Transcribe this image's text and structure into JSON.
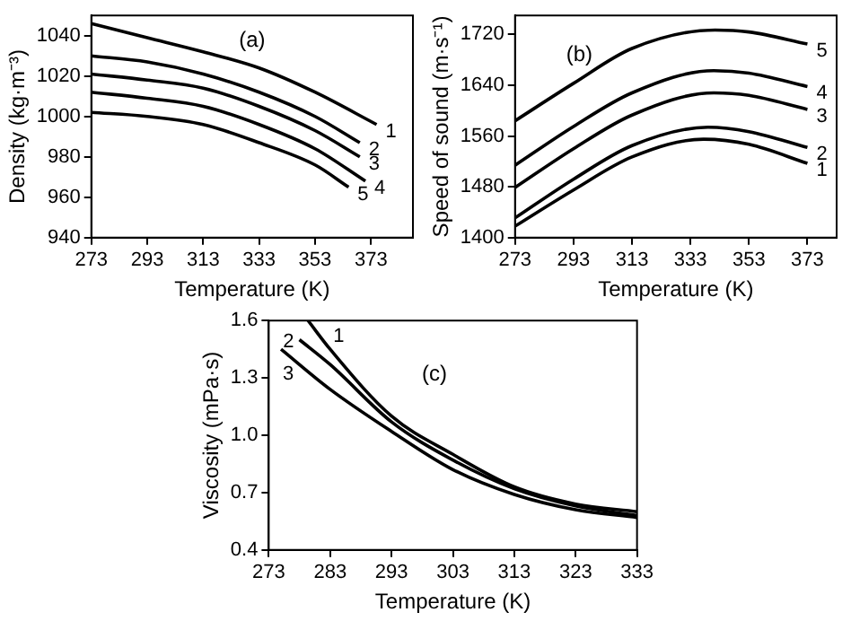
{
  "chart_data": [
    {
      "type": "line",
      "title": "(a)",
      "xlabel": "Temperature (K)",
      "ylabel": "Density (kg·m⁻³)",
      "xlim": [
        273,
        388
      ],
      "xticks": [
        273,
        293,
        313,
        333,
        353,
        373
      ],
      "ylim": [
        940,
        1050
      ],
      "yticks": [
        940,
        960,
        980,
        1000,
        1020,
        1040
      ],
      "grid": false,
      "legend": false,
      "marker": "none",
      "line_style": "solid",
      "series": [
        {
          "name": "1",
          "color": "#000000",
          "x": [
            273,
            293,
            313,
            333,
            353,
            375
          ],
          "values": [
            1046,
            1039,
            1032,
            1024,
            1012,
            996
          ]
        },
        {
          "name": "2",
          "color": "#000000",
          "x": [
            273,
            293,
            313,
            333,
            353,
            369
          ],
          "values": [
            1030,
            1027,
            1021,
            1012,
            1000,
            987
          ]
        },
        {
          "name": "3",
          "color": "#000000",
          "x": [
            273,
            293,
            313,
            333,
            353,
            369
          ],
          "values": [
            1021,
            1018,
            1014,
            1005,
            993,
            980
          ]
        },
        {
          "name": "4",
          "color": "#000000",
          "x": [
            273,
            293,
            313,
            333,
            353,
            371
          ],
          "values": [
            1012,
            1009,
            1005,
            996,
            984,
            968
          ]
        },
        {
          "name": "5",
          "color": "#000000",
          "x": [
            273,
            293,
            313,
            333,
            353,
            365
          ],
          "values": [
            1002,
            1000,
            996,
            987,
            976,
            965
          ]
        }
      ]
    },
    {
      "type": "line",
      "title": "(b)",
      "xlabel": "Temperature (K)",
      "ylabel": "Speed of sound (m·s⁻¹)",
      "xlim": [
        273,
        383
      ],
      "xticks": [
        273,
        293,
        313,
        333,
        353,
        373
      ],
      "ylim": [
        1400,
        1750
      ],
      "yticks": [
        1400,
        1480,
        1560,
        1640,
        1720
      ],
      "grid": false,
      "legend": false,
      "marker": "none",
      "line_style": "solid",
      "series": [
        {
          "name": "1",
          "color": "#000000",
          "x": [
            273,
            293,
            313,
            337.5,
            353,
            373
          ],
          "values": [
            1418,
            1475,
            1527,
            1555,
            1547,
            1517
          ]
        },
        {
          "name": "2",
          "color": "#000000",
          "x": [
            273,
            293,
            313,
            339,
            353,
            373
          ],
          "values": [
            1431,
            1492,
            1545,
            1574,
            1567,
            1542
          ]
        },
        {
          "name": "3",
          "color": "#000000",
          "x": [
            273,
            293,
            313,
            341,
            353,
            373
          ],
          "values": [
            1479,
            1540,
            1593,
            1628,
            1624,
            1602
          ]
        },
        {
          "name": "4",
          "color": "#000000",
          "x": [
            273,
            293,
            313,
            341,
            353,
            373
          ],
          "values": [
            1514,
            1575,
            1628,
            1663,
            1659,
            1638
          ]
        },
        {
          "name": "5",
          "color": "#000000",
          "x": [
            273,
            293,
            313,
            341.4,
            353,
            373
          ],
          "values": [
            1584,
            1643,
            1698,
            1727,
            1724,
            1705
          ]
        }
      ]
    },
    {
      "type": "line",
      "title": "(c)",
      "xlabel": "Temperature (K)",
      "ylabel": "Viscosity (mPa·s)",
      "xlim": [
        273,
        333
      ],
      "xticks": [
        273,
        283,
        293,
        303,
        313,
        323,
        333
      ],
      "ylim": [
        0.4,
        1.6
      ],
      "yticks": [
        {
          "value": 0.4,
          "label": "0.4"
        },
        {
          "value": 0.7,
          "label": "0.7"
        },
        {
          "value": 1.0,
          "label": "1.0"
        },
        {
          "value": 1.3,
          "label": "1.3"
        },
        {
          "value": 1.6,
          "label": "1.6"
        }
      ],
      "grid": false,
      "legend": false,
      "marker": "none",
      "line_style": "solid",
      "series": [
        {
          "name": "1",
          "color": "#000000",
          "x": [
            279.4,
            283,
            293,
            303,
            313,
            323,
            333
          ],
          "values": [
            1.6,
            1.45,
            1.1,
            0.9,
            0.73,
            0.64,
            0.6
          ]
        },
        {
          "name": "2",
          "color": "#000000",
          "x": [
            278,
            283,
            293,
            303,
            313,
            323,
            333
          ],
          "values": [
            1.5,
            1.37,
            1.07,
            0.87,
            0.72,
            0.63,
            0.58
          ]
        },
        {
          "name": "3",
          "color": "#000000",
          "x": [
            275,
            283,
            293,
            303,
            313,
            323,
            333
          ],
          "values": [
            1.45,
            1.24,
            1.02,
            0.82,
            0.69,
            0.61,
            0.57
          ]
        }
      ]
    }
  ]
}
